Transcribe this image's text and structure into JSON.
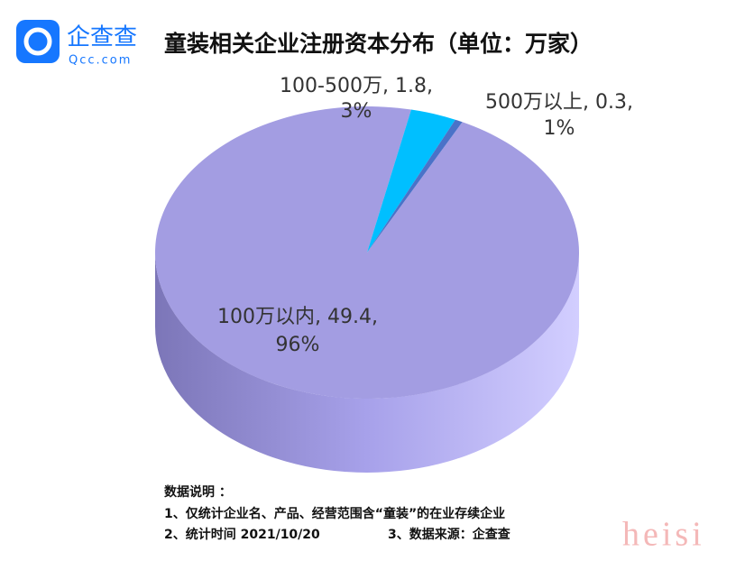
{
  "logo": {
    "name": "企查查",
    "site": "Qcc.com"
  },
  "chart_data": {
    "type": "pie",
    "title": "童装相关企业注册资本分布（单位：万家）",
    "categories": [
      "100万以内",
      "100-500万",
      "500万以上"
    ],
    "values": [
      49.4,
      1.8,
      0.3
    ],
    "colors": [
      "#a39de2",
      "#00bfff",
      "#4a72c8"
    ],
    "data_labels": [
      [
        "100万以内, 49.4,",
        "96%"
      ],
      [
        "100-500万, 1.8,",
        "3%"
      ],
      [
        "500万以上, 0.3,",
        "1%"
      ]
    ]
  },
  "notes": [
    "数据说明 ：",
    "1、仅统计企业名、产品、经营范围含“童装”的在业存续企业",
    "2、统计时间 2021/10/20",
    "3、数据来源：企查查"
  ],
  "watermark": "heisi"
}
